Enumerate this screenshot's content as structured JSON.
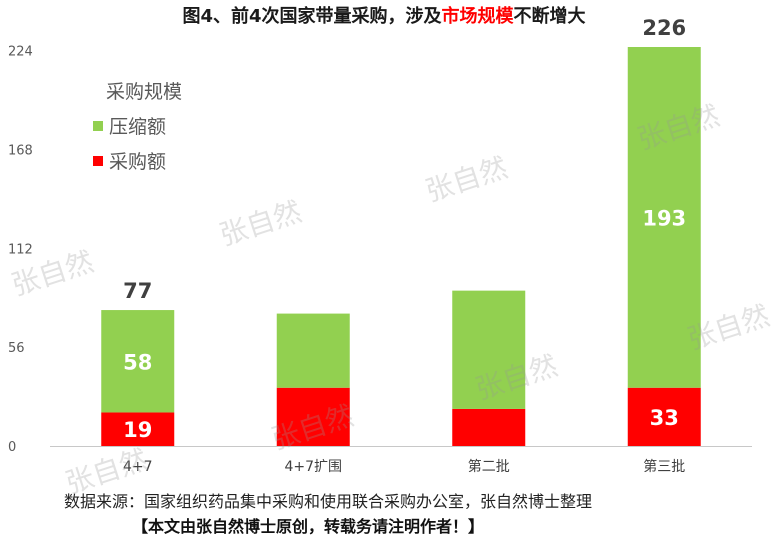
{
  "title": {
    "prefix": "图4、前4次国家带量采购，涉及",
    "highlight": "市场规模",
    "suffix": "不断增大"
  },
  "colors": {
    "scale": "#92d050",
    "purchase": "#ff0000",
    "highlight": "#ff0000"
  },
  "chart_data": {
    "type": "bar",
    "stacked": true,
    "categories": [
      "4+7",
      "4+7扩围",
      "第二批",
      "第三批"
    ],
    "series": [
      {
        "name": "采购额",
        "values": [
          19,
          33,
          21,
          33
        ],
        "data_labels": [
          "19",
          "",
          "",
          "33"
        ]
      },
      {
        "name": "压缩额",
        "values": [
          58,
          42,
          67,
          193
        ],
        "data_labels": [
          "58",
          "",
          "",
          "193"
        ]
      }
    ],
    "totals": [
      77,
      75,
      88,
      226
    ],
    "total_labels": [
      "77",
      "",
      "",
      "226"
    ],
    "ylim": [
      0,
      226
    ],
    "yticks": [
      0,
      56,
      112,
      168,
      224
    ],
    "legend": {
      "title": "采购规模",
      "position": "top-left"
    },
    "grid": false
  },
  "source": "数据来源：国家组织药品集中采购和使用联合采购办公室，张自然博士整理",
  "notice": "【本文由张自然博士原创，转载务请注明作者！】",
  "watermark": "张自然"
}
